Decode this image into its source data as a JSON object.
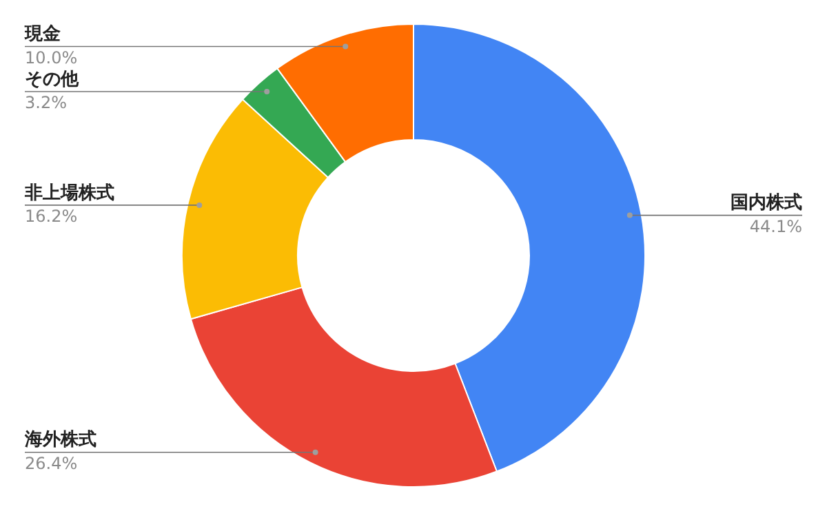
{
  "chart_data": {
    "type": "donut",
    "categories": [
      "国内株式",
      "海外株式",
      "非上場株式",
      "その他",
      "現金"
    ],
    "values": [
      44.1,
      26.4,
      16.2,
      3.2,
      10.0
    ],
    "value_labels": [
      "44.1%",
      "26.4%",
      "16.2%",
      "3.2%",
      "10.0%"
    ],
    "colors": [
      "#4285f4",
      "#ea4335",
      "#fbbc04",
      "#34a853",
      "#ff6d01"
    ],
    "legend": false
  }
}
